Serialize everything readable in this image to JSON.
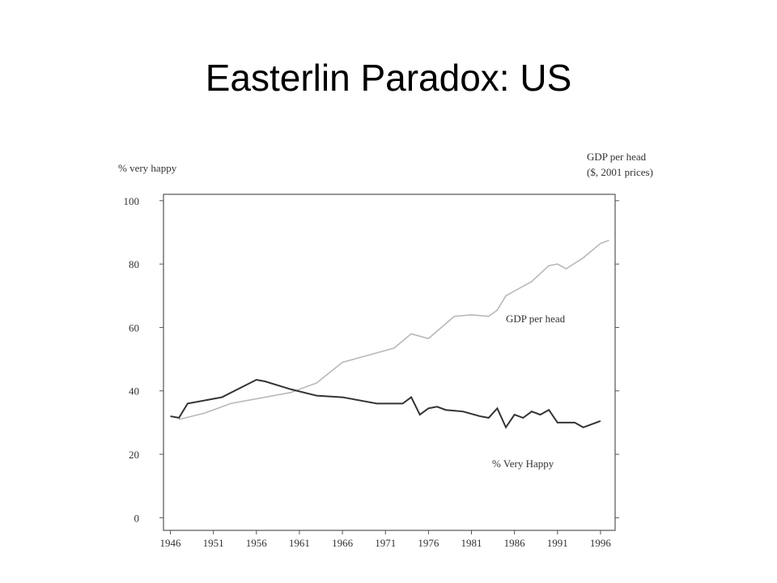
{
  "title": "Easterlin Paradox: US",
  "chart_data": {
    "type": "line",
    "y_label": "% very happy",
    "y2_label": [
      "GDP per head",
      "($, 2001 prices)"
    ],
    "xlim": [
      1945.2,
      1997.7
    ],
    "xticks": [
      1946,
      1951,
      1956,
      1961,
      1966,
      1971,
      1976,
      1981,
      1986,
      1991,
      1996
    ],
    "ylim": [
      -4,
      102
    ],
    "yticks": [
      0,
      20,
      40,
      60,
      80,
      100
    ],
    "series": [
      {
        "name": "GDP per head",
        "color": "#b8b8b8",
        "x": [
          1947,
          1950,
          1953,
          1957,
          1960,
          1963,
          1966,
          1968,
          1972,
          1974,
          1976,
          1979,
          1981,
          1983,
          1984,
          1985,
          1988,
          1990,
          1991,
          1992,
          1994,
          1996,
          1997
        ],
        "values": [
          31,
          33,
          36,
          38,
          39.5,
          42.5,
          49,
          50.5,
          53.5,
          58,
          56.5,
          63.5,
          64,
          63.5,
          65.5,
          70,
          74.5,
          79.5,
          80,
          78.5,
          82,
          86.5,
          87.5
        ]
      },
      {
        "name": "% Very Happy",
        "color": "#333333",
        "x": [
          1946,
          1947,
          1948,
          1952,
          1956,
          1957,
          1960,
          1963,
          1966,
          1970,
          1973,
          1974,
          1975,
          1976,
          1977,
          1978,
          1980,
          1982,
          1983,
          1984,
          1985,
          1986,
          1987,
          1988,
          1989,
          1990,
          1991,
          1993,
          1994,
          1996
        ],
        "values": [
          32,
          31.5,
          36,
          38,
          43.5,
          43,
          40.5,
          38.5,
          38,
          36,
          36,
          38,
          32.5,
          34.5,
          35,
          34,
          33.5,
          32,
          31.5,
          34.5,
          28.5,
          32.5,
          31.5,
          33.5,
          32.5,
          34,
          30,
          30,
          28.5,
          30.5
        ]
      }
    ]
  }
}
